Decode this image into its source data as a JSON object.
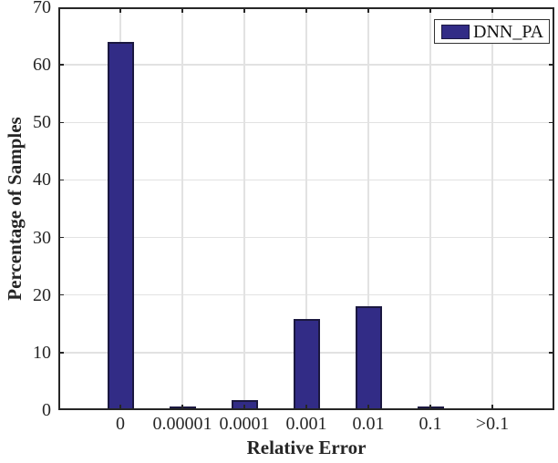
{
  "chart_data": {
    "type": "bar",
    "title": "",
    "xlabel": "Relative Error",
    "ylabel": "Percentage of Samples",
    "categories": [
      "0",
      "0.00001",
      "0.0001",
      "0.001",
      "0.01",
      "0.1",
      ">0.1"
    ],
    "series": [
      {
        "name": "DNN_PA",
        "values": [
          64,
          0.3,
          1.7,
          15.8,
          18,
          0.5,
          0
        ]
      }
    ],
    "ylim": [
      0,
      70
    ],
    "yticks": [
      0,
      10,
      20,
      30,
      40,
      50,
      60,
      70
    ],
    "grid": true,
    "legend": {
      "label": "DNN_PA",
      "position": "top-right"
    },
    "colors": {
      "bar_fill": "#322C86",
      "bar_edge": "#1B1840",
      "axis": "#262626",
      "grid": "#E2E2E2",
      "text": "#262626",
      "legend_border": "#333333",
      "legend_bg": "#ffffff"
    }
  }
}
